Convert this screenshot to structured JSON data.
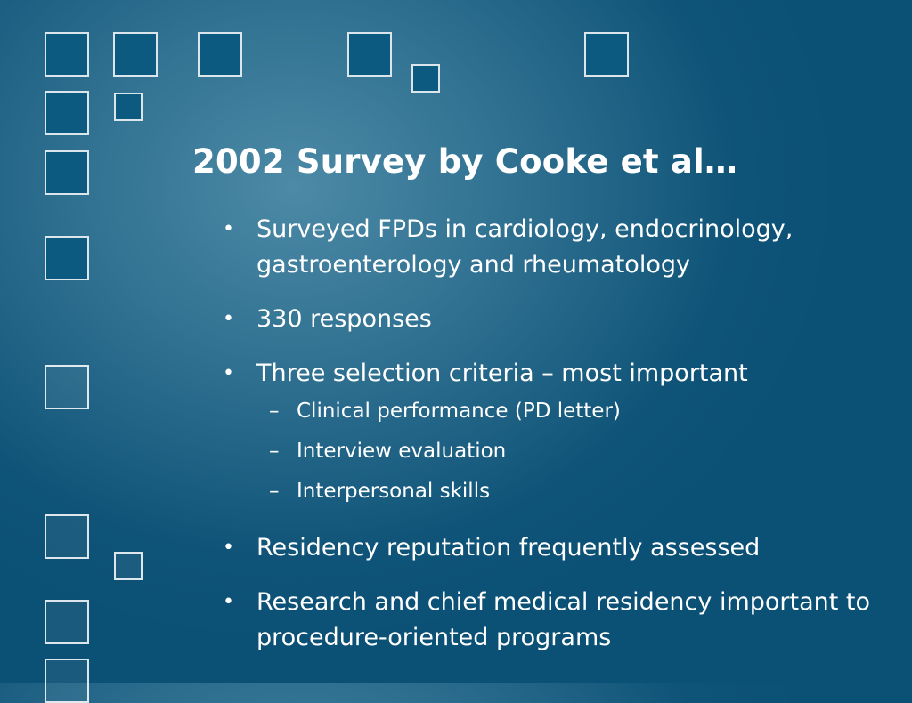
{
  "slide": {
    "title": "2002 Survey by Cooke et al…",
    "bullet_char": "•",
    "dash_char": "–",
    "bullets": [
      {
        "text": "Surveyed FPDs in cardiology, endocrinology, gastroenterology and rheumatology"
      },
      {
        "text": "330 responses"
      },
      {
        "text": "Three selection criteria – most important"
      },
      {
        "text": "Residency reputation frequently assessed"
      },
      {
        "text": "Research and chief medical residency important to procedure-oriented programs"
      }
    ],
    "sub_bullets": [
      "Clinical performance (PD letter)",
      "Interview evaluation",
      "Interpersonal skills"
    ]
  }
}
